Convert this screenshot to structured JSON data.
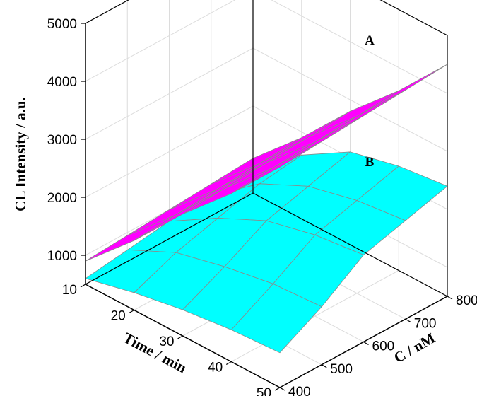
{
  "chart_data": {
    "type": "surface3d",
    "xlabel": "Time / min",
    "ylabel": "C / nM",
    "zlabel": "CL Intensity / a.u.",
    "x_ticks": [
      "10",
      "20",
      "30",
      "40",
      "50"
    ],
    "y_ticks": [
      "400",
      "500",
      "600",
      "700",
      "800"
    ],
    "z_ticks": [
      "1000",
      "2000",
      "3000",
      "4000",
      "5000"
    ],
    "xlim": [
      10,
      50
    ],
    "ylim": [
      400,
      800
    ],
    "zlim": [
      500,
      5000
    ],
    "grid": true,
    "x": [
      10,
      20,
      30,
      40,
      50
    ],
    "y": [
      400,
      500,
      600,
      700,
      800
    ],
    "series": [
      {
        "name": "A",
        "color": "#ff00ff",
        "values": [
          [
            900,
            1700,
            2600,
            3400,
            4300
          ],
          [
            950,
            1750,
            2650,
            3450,
            4350
          ],
          [
            1000,
            1800,
            2700,
            3500,
            4400
          ],
          [
            1050,
            1850,
            2750,
            3550,
            4450
          ],
          [
            1100,
            1900,
            2800,
            3600,
            4500
          ]
        ]
      },
      {
        "name": "B",
        "color": "#00ffff",
        "values": [
          [
            600,
            800,
            950,
            1050,
            1100
          ],
          [
            700,
            1100,
            1300,
            1450,
            1500
          ],
          [
            800,
            1300,
            1700,
            1900,
            2000
          ],
          [
            850,
            1500,
            1900,
            2100,
            2200
          ],
          [
            900,
            1600,
            2100,
            2300,
            2400
          ]
        ]
      }
    ]
  }
}
